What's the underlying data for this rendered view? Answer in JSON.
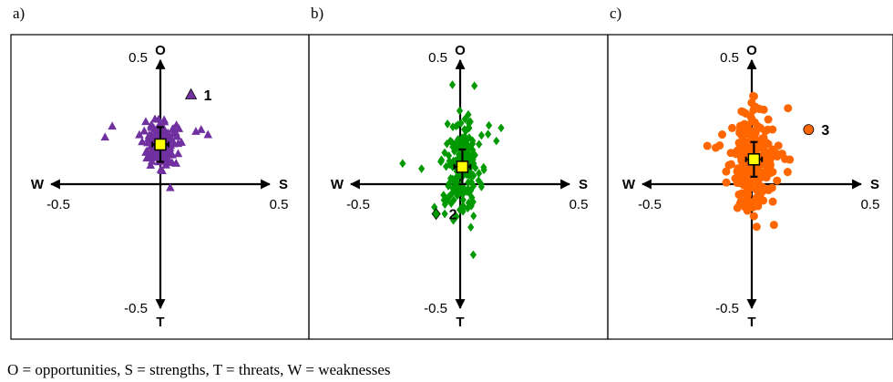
{
  "caption": "O = opportunities, S = strengths, T = threats, W = weaknesses",
  "chart_data": [
    {
      "type": "scatter",
      "panel_label": "a)",
      "axis_letters": {
        "top": "O",
        "bottom": "T",
        "left": "W",
        "right": "S"
      },
      "tick_labels": {
        "top": "0.5",
        "bottom": "-0.5",
        "left": "-0.5",
        "right": "0.5"
      },
      "xlim": [
        -0.5,
        0.5
      ],
      "ylim": [
        -0.5,
        0.5
      ],
      "marker": "triangle",
      "color": "#7030a0",
      "cloud": {
        "cx": 0.0,
        "cy": 0.16,
        "sx": 0.035,
        "sy": 0.05,
        "n": 150
      },
      "outlier": {
        "x": 0.14,
        "y": 0.36,
        "label": "1"
      },
      "mean": {
        "x": 0.0,
        "y": 0.16,
        "x_err": 0.02,
        "y_err": 0.07
      }
    },
    {
      "type": "scatter",
      "panel_label": "b)",
      "axis_letters": {
        "top": "O",
        "bottom": "T",
        "left": "W",
        "right": "S"
      },
      "tick_labels": {
        "top": "0.5",
        "bottom": "-0.5",
        "left": "-0.5",
        "right": "0.5"
      },
      "xlim": [
        -0.5,
        0.5
      ],
      "ylim": [
        -0.5,
        0.5
      ],
      "marker": "diamond",
      "color": "#009900",
      "cloud": {
        "cx": 0.01,
        "cy": 0.07,
        "sx": 0.04,
        "sy": 0.1,
        "n": 220
      },
      "outlier": {
        "x": -0.11,
        "y": -0.12,
        "label": "2"
      },
      "mean": {
        "x": 0.01,
        "y": 0.07,
        "x_err": 0.02,
        "y_err": 0.07
      }
    },
    {
      "type": "scatter",
      "panel_label": "c)",
      "axis_letters": {
        "top": "O",
        "bottom": "T",
        "left": "W",
        "right": "S"
      },
      "tick_labels": {
        "top": "0.5",
        "bottom": "-0.5",
        "left": "-0.5",
        "right": "0.5"
      },
      "xlim": [
        -0.5,
        0.5
      ],
      "ylim": [
        -0.5,
        0.5
      ],
      "marker": "circle",
      "color": "#ff6600",
      "cloud": {
        "cx": 0.01,
        "cy": 0.1,
        "sx": 0.045,
        "sy": 0.1,
        "n": 260
      },
      "outlier": {
        "x": 0.26,
        "y": 0.22,
        "label": "3"
      },
      "mean": {
        "x": 0.01,
        "y": 0.1,
        "x_err": 0.02,
        "y_err": 0.07
      }
    }
  ]
}
